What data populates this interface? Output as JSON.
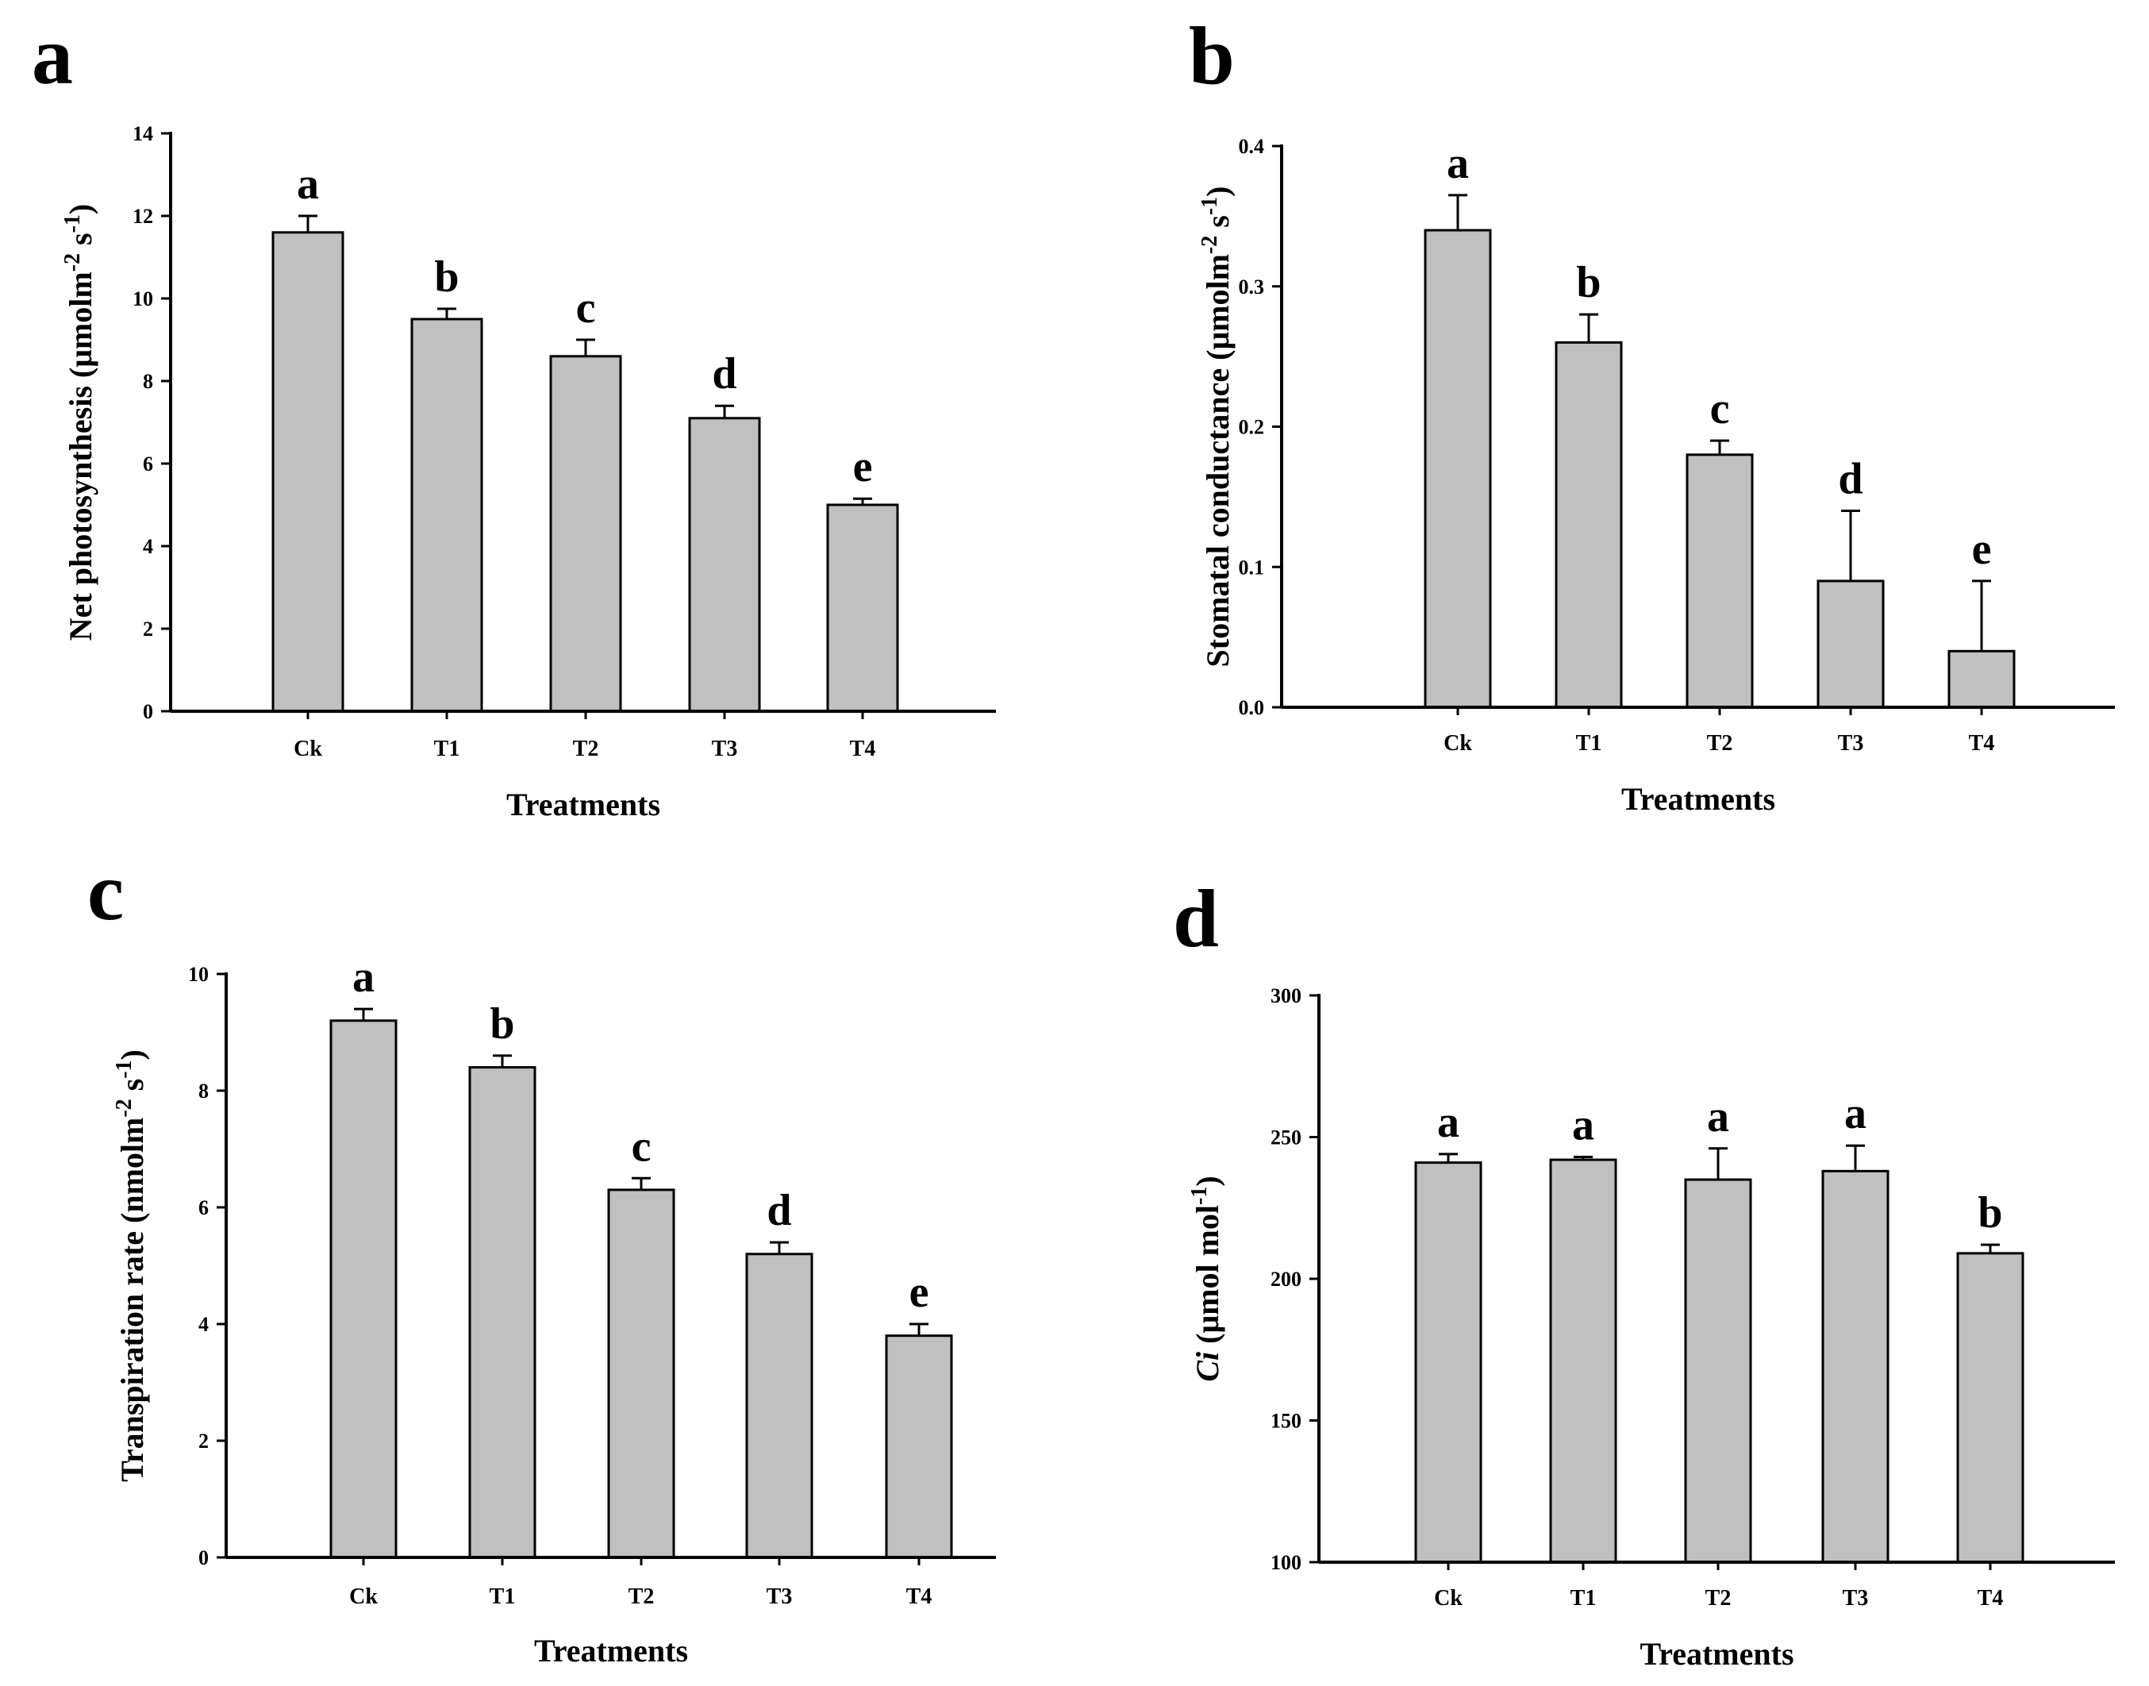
{
  "chart_data": [
    {
      "type": "bar",
      "panel": "a",
      "categories": [
        "Ck",
        "T1",
        "T2",
        "T3",
        "T4"
      ],
      "values": [
        11.6,
        9.5,
        8.6,
        7.1,
        5.0
      ],
      "errors": [
        0.4,
        0.25,
        0.4,
        0.3,
        0.15
      ],
      "significance": [
        "a",
        "b",
        "c",
        "d",
        "e"
      ],
      "ylim": [
        0,
        14
      ],
      "yticks": [
        "0",
        "2",
        "4",
        "6",
        "8",
        "10",
        "12",
        "14"
      ],
      "xlabel": "Treatments",
      "ylabel": {
        "main": "Net photosynthesis (μmolm",
        "exp1": "-2",
        "mid": " s",
        "exp2": "-1",
        "end": ")"
      }
    },
    {
      "type": "bar",
      "panel": "b",
      "categories": [
        "Ck",
        "T1",
        "T2",
        "T3",
        "T4"
      ],
      "values": [
        0.34,
        0.26,
        0.18,
        0.09,
        0.04
      ],
      "errors": [
        0.025,
        0.02,
        0.01,
        0.05,
        0.05
      ],
      "significance": [
        "a",
        "b",
        "c",
        "d",
        "e"
      ],
      "ylim": [
        0,
        0.4
      ],
      "yticks": [
        "0.0",
        "0.1",
        "0.2",
        "0.3",
        "0.4"
      ],
      "xlabel": "Treatments",
      "ylabel": {
        "main": "Stomatal conductance (μmolm",
        "exp1": "-2",
        "mid": " s",
        "exp2": "-1",
        "end": ")"
      }
    },
    {
      "type": "bar",
      "panel": "c",
      "categories": [
        "Ck",
        "T1",
        "T2",
        "T3",
        "T4"
      ],
      "values": [
        9.2,
        8.4,
        6.3,
        5.2,
        3.8
      ],
      "errors": [
        0.2,
        0.2,
        0.2,
        0.2,
        0.2
      ],
      "significance": [
        "a",
        "b",
        "c",
        "d",
        "e"
      ],
      "ylim": [
        0,
        10
      ],
      "yticks": [
        "0",
        "2",
        "4",
        "6",
        "8",
        "10"
      ],
      "xlabel": "Treatments",
      "ylabel": {
        "main": "Transpiration rate (nmolm",
        "exp1": "-2",
        "mid": " s",
        "exp2": "-1",
        "end": ")"
      }
    },
    {
      "type": "bar",
      "panel": "d",
      "categories": [
        "Ck",
        "T1",
        "T2",
        "T3",
        "T4"
      ],
      "values": [
        241,
        242,
        235,
        238,
        209
      ],
      "errors": [
        3,
        1,
        11,
        9,
        3
      ],
      "significance": [
        "a",
        "a",
        "a",
        "a",
        "b"
      ],
      "ylim": [
        100,
        300
      ],
      "yticks": [
        "100",
        "150",
        "200",
        "250",
        "300"
      ],
      "xlabel": "Treatments",
      "ylabel": {
        "italic": "Ci",
        "main": " (μmol mol",
        "exp1": "-1",
        "end": ")"
      }
    }
  ],
  "colors": {
    "bar_fill": "#c0c0c0",
    "stroke": "#000000",
    "background": "#ffffff"
  }
}
